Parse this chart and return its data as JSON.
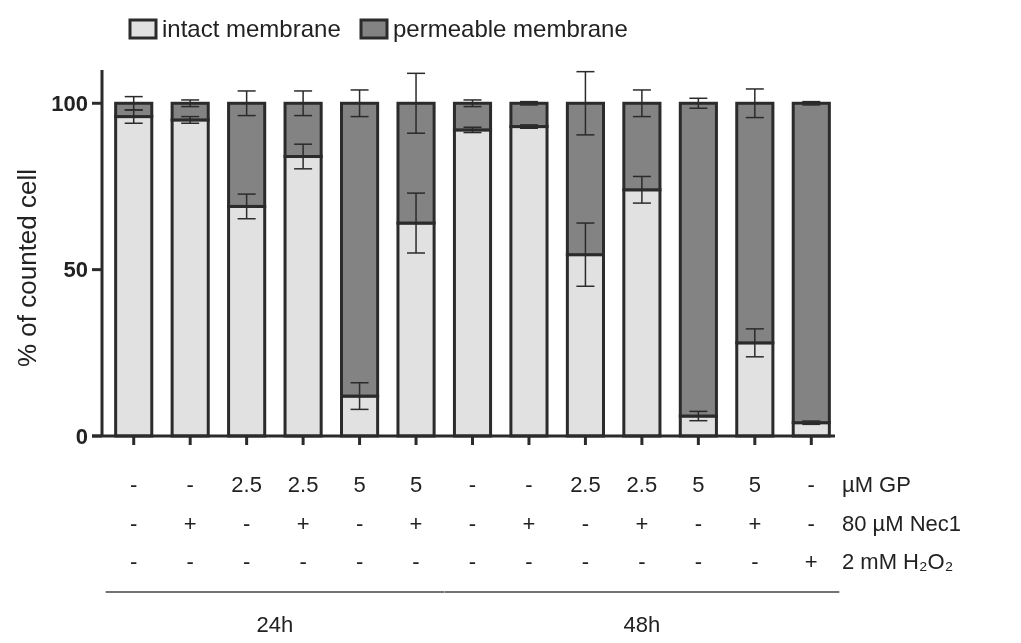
{
  "chart_data": {
    "type": "bar",
    "stacked": true,
    "ylabel": "% of counted cell",
    "categories": [
      "-\n-\n-",
      "-\n+\n-",
      "2.5\n-\n-",
      "2.5\n+\n-",
      "5\n-\n-",
      "5\n+\n-",
      "-\n-\n-",
      "-\n+\n-",
      "2.5\n-\n-",
      "2.5\n+\n-",
      "5\n-\n-",
      "5\n+\n-",
      "-\n-\n+"
    ],
    "series": [
      {
        "name": "intact membrane",
        "color": "#e0e1e0",
        "values": [
          96,
          95,
          69,
          84,
          12,
          64,
          92,
          93,
          54.5,
          74,
          6,
          28,
          4
        ],
        "errors": [
          2,
          1,
          3.7,
          3.7,
          4,
          9,
          0.8,
          0.5,
          9.5,
          4,
          1.4,
          4.2,
          0.5
        ]
      },
      {
        "name": "permeable membrane",
        "color": "#838383",
        "values": [
          4,
          5,
          31,
          16,
          88,
          36,
          8,
          7,
          45.5,
          26,
          94,
          72,
          96
        ],
        "errors": [
          2,
          1,
          3.7,
          3.7,
          4,
          9,
          1,
          0.5,
          9.5,
          4,
          1.5,
          4.3,
          0.5
        ]
      }
    ],
    "ylim": [
      0,
      110
    ],
    "yticks": [
      0,
      50,
      100
    ],
    "legend": "top",
    "annotations": [
      "µM GP",
      "80 µM Nec1",
      "2 mM H₂O₂",
      "24h",
      "48h"
    ]
  }
}
